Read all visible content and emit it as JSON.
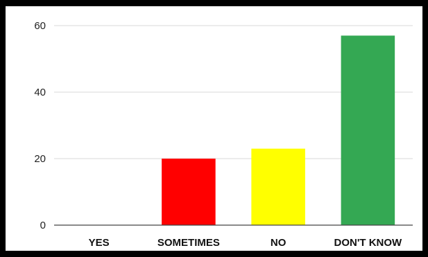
{
  "chart_data": {
    "type": "bar",
    "title": "",
    "xlabel": "",
    "ylabel": "",
    "categories": [
      "YES",
      "SOMETIMES",
      "NO",
      "DON'T KNOW"
    ],
    "values": [
      0,
      20,
      23,
      57
    ],
    "colors": [
      "#ffffff",
      "#ff0000",
      "#ffff00",
      "#34a853"
    ],
    "ylim": [
      0,
      60
    ],
    "yticks": [
      "0",
      "20",
      "40",
      "60"
    ],
    "grid": true,
    "legend": "none"
  }
}
